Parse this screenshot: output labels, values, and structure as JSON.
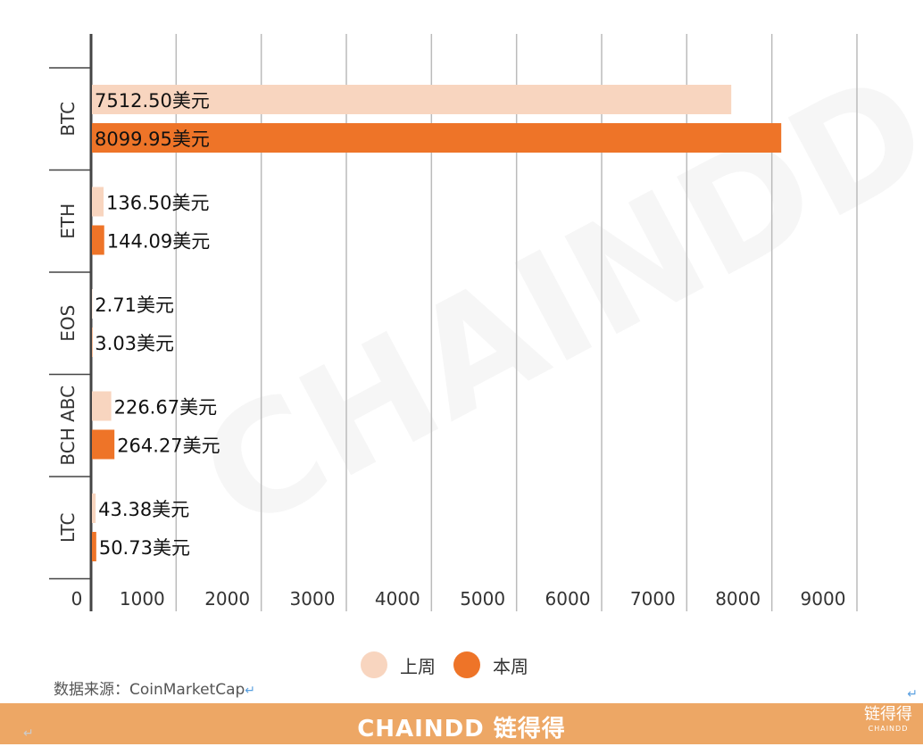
{
  "chart_data": {
    "type": "bar",
    "orientation": "horizontal",
    "categories": [
      "BTC",
      "ETH",
      "EOS",
      "BCH ABC",
      "LTC"
    ],
    "series": [
      {
        "name": "上周",
        "color": "#f8d5bf",
        "values": [
          7512.5,
          136.5,
          2.71,
          226.67,
          43.38
        ],
        "labels": [
          "7512.50美元",
          "136.50美元",
          "2.71美元",
          "226.67美元",
          "43.38美元"
        ]
      },
      {
        "name": "本周",
        "color": "#ee7428",
        "values": [
          8099.95,
          144.09,
          3.03,
          264.27,
          50.73
        ],
        "labels": [
          "8099.95美元",
          "144.09美元",
          "3.03美元",
          "264.27美元",
          "50.73美元"
        ]
      }
    ],
    "xlim": [
      0,
      9000
    ],
    "xticks": [
      0,
      1000,
      2000,
      3000,
      4000,
      5000,
      6000,
      7000,
      8000,
      9000
    ],
    "grid": true,
    "legend": "bottom"
  },
  "source": "数据来源：CoinMarketCap",
  "return_mark": "↵",
  "banner": {
    "title": "CHAINDD 链得得",
    "logo": "链得得",
    "logo_sub": "CHAINDD"
  },
  "watermark": "CHAINDD"
}
